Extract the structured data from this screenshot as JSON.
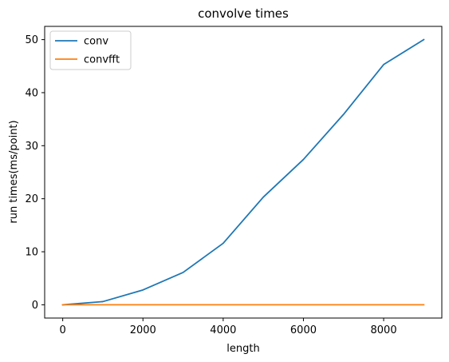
{
  "chart_data": {
    "type": "line",
    "title": "convolve times",
    "xlabel": "length",
    "ylabel": "run times(ms/point)",
    "xlim": [
      -450,
      9450
    ],
    "ylim": [
      -2.5,
      52.5
    ],
    "xticks": [
      0,
      2000,
      4000,
      6000,
      8000
    ],
    "xtick_labels": [
      "0",
      "2000",
      "4000",
      "6000",
      "8000"
    ],
    "yticks": [
      0,
      10,
      20,
      30,
      40,
      50
    ],
    "ytick_labels": [
      "0",
      "10",
      "20",
      "30",
      "40",
      "50"
    ],
    "x": [
      0,
      1000,
      2000,
      3000,
      4000,
      5000,
      6000,
      7000,
      8000,
      9000
    ],
    "series": [
      {
        "name": "conv",
        "color": "#1f77b4",
        "values": [
          0.0,
          0.6,
          2.8,
          6.1,
          11.6,
          20.3,
          27.4,
          35.9,
          45.3,
          50.0
        ]
      },
      {
        "name": "convfft",
        "color": "#ff7f0e",
        "values": [
          0.0,
          0.0,
          0.0,
          0.0,
          0.0,
          0.0,
          0.0,
          0.0,
          0.0,
          0.0
        ]
      }
    ],
    "grid": false,
    "legend_position": "top-left"
  }
}
